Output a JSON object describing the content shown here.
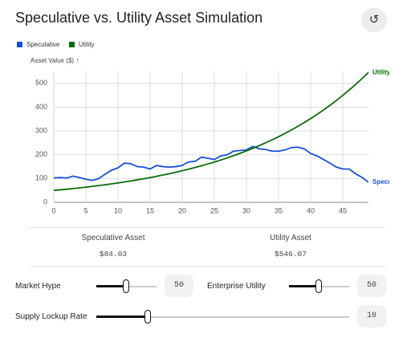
{
  "chart_data": {
    "type": "line",
    "title": "Speculative vs. Utility Asset Simulation",
    "y_label": "Asset Value ($) ↑",
    "x": [
      0,
      1,
      2,
      3,
      4,
      5,
      6,
      7,
      8,
      9,
      10,
      11,
      12,
      13,
      14,
      15,
      16,
      17,
      18,
      19,
      20,
      21,
      22,
      23,
      24,
      25,
      26,
      27,
      28,
      29,
      30,
      31,
      32,
      33,
      34,
      35,
      36,
      37,
      38,
      39,
      40,
      41,
      42,
      43,
      44,
      45,
      46,
      47,
      48,
      49
    ],
    "series": [
      {
        "name": "Speculative",
        "color": "#1a4fd6",
        "values": [
          103,
          104,
          102,
          110,
          104,
          97,
          92,
          100,
          118,
          135,
          145,
          165,
          162,
          150,
          148,
          140,
          155,
          150,
          148,
          150,
          155,
          170,
          172,
          190,
          185,
          180,
          195,
          200,
          215,
          218,
          220,
          235,
          225,
          222,
          215,
          215,
          220,
          230,
          232,
          225,
          205,
          195,
          180,
          165,
          148,
          140,
          140,
          120,
          105,
          84.03
        ]
      },
      {
        "name": "Utility",
        "color": "#0b6b0b",
        "values": [
          50,
          52.5,
          55.1,
          57.9,
          60.8,
          63.8,
          67,
          70.4,
          73.9,
          77.6,
          81.4,
          85.5,
          89.8,
          94.3,
          99,
          103.9,
          109.1,
          114.6,
          120.3,
          126.4,
          132.7,
          139.3,
          146.3,
          153.6,
          161.3,
          169.3,
          177.8,
          186.7,
          196,
          205.8,
          216.1,
          226.9,
          238.3,
          250.2,
          262.7,
          275.8,
          289.6,
          304.1,
          319.3,
          335.3,
          352,
          369.6,
          388.1,
          407.5,
          427.9,
          449.3,
          471.7,
          495.3,
          520.1,
          546.07
        ]
      }
    ],
    "xlim": [
      0,
      49
    ],
    "xticks": [
      0,
      5,
      10,
      15,
      20,
      25,
      30,
      35,
      40,
      45
    ],
    "ylim": [
      0,
      550
    ],
    "yticks": [
      0,
      100,
      200,
      300,
      400,
      500
    ],
    "grid": true
  },
  "stats": [
    {
      "label": "Speculative Asset",
      "value": "$84.03"
    },
    {
      "label": "Utility Asset",
      "value": "$546.07"
    }
  ],
  "controls": [
    {
      "label": "Market Hype",
      "value": 50
    },
    {
      "label": "Enterprise Utility",
      "value": 50
    },
    {
      "label": "Supply Lockup Rate",
      "value": 10
    }
  ]
}
